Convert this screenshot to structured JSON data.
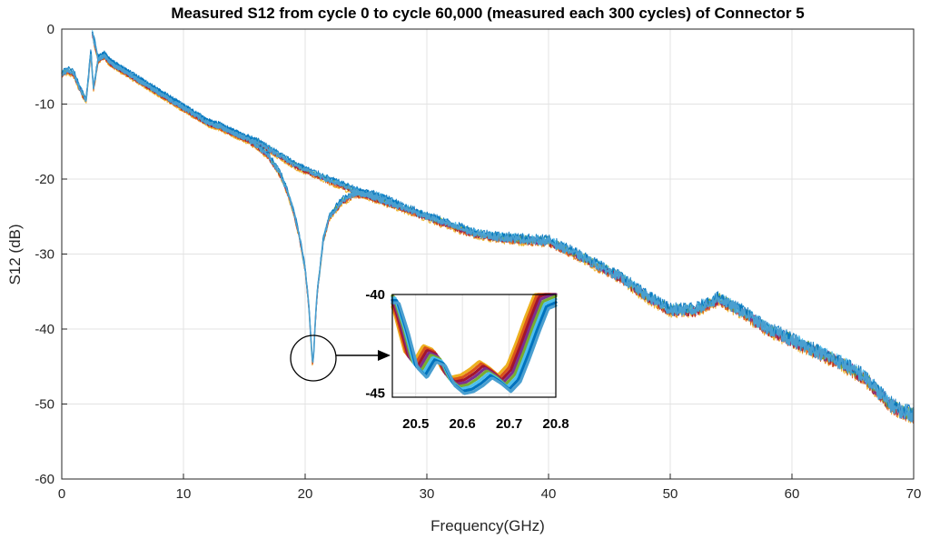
{
  "chart_data": {
    "type": "line",
    "title": "Measured S12 from cycle 0 to cycle 60,000 (measured each 300 cycles) of Connector 5",
    "xlabel": "Frequency(GHz)",
    "ylabel": "S12 (dB)",
    "xlim": [
      0,
      70
    ],
    "ylim": [
      -60,
      0
    ],
    "x_ticks": [
      "0",
      "10",
      "20",
      "30",
      "40",
      "50",
      "60",
      "70"
    ],
    "y_ticks": [
      "0",
      "-10",
      "-20",
      "-30",
      "-40",
      "-50",
      "-60"
    ],
    "grid": true,
    "legend": "none",
    "series_colors": [
      "#edb120",
      "#d95319",
      "#a2142f",
      "#7e2f8e",
      "#77ac30",
      "#4dbeee",
      "#0072bd"
    ],
    "main_color": "#4a9fd0",
    "series": [
      {
        "x": [
          0,
          0.5,
          1.0,
          1.5,
          2.0,
          2.4,
          2.6,
          3.0,
          3.5,
          4.0,
          5,
          6,
          7,
          8,
          9,
          10,
          11,
          12,
          13,
          14,
          15,
          16,
          17,
          18,
          19,
          20,
          22,
          24,
          26,
          28,
          30,
          32,
          34,
          36,
          38,
          40,
          42,
          44,
          46,
          48,
          50,
          52,
          54,
          56,
          58,
          60,
          62,
          64,
          66,
          68,
          69,
          70
        ],
        "y": [
          -6,
          -5.5,
          -6,
          -8,
          -9.5,
          -3,
          -8,
          -4,
          -3.5,
          -4.5,
          -5.5,
          -6.5,
          -7.5,
          -8.5,
          -9.5,
          -10.5,
          -11.5,
          -12.5,
          -13,
          -13.8,
          -14.5,
          -15,
          -16,
          -17,
          -18,
          -18.8,
          -20.2,
          -21.5,
          -22.7,
          -23.8,
          -25,
          -26.2,
          -27.3,
          -27.8,
          -28.1,
          -28.3,
          -29.8,
          -31.5,
          -33.2,
          -35.6,
          -37.5,
          -37.5,
          -36,
          -37.8,
          -40,
          -41.5,
          -43,
          -44.5,
          -46.5,
          -50,
          -51,
          -51.5
        ]
      },
      {
        "x": [
          2.5,
          3.0,
          3.5,
          4.0,
          5,
          6,
          7,
          8,
          9,
          10,
          11,
          12,
          13,
          14,
          15,
          16,
          17,
          18,
          18.5,
          19,
          19.5,
          20,
          20.3,
          20.5,
          20.6,
          20.7,
          20.8,
          21,
          21.5,
          22,
          23,
          24,
          25,
          26,
          28
        ],
        "y": [
          -0.5,
          -4,
          -3.5,
          -4.5,
          -5.5,
          -6.5,
          -7.5,
          -8.5,
          -9.5,
          -10.5,
          -11.5,
          -12.5,
          -13,
          -13.8,
          -14.5,
          -15.5,
          -17,
          -19.5,
          -21.5,
          -24,
          -27.5,
          -32,
          -37,
          -42,
          -44.5,
          -43.5,
          -40,
          -35,
          -28,
          -25,
          -23,
          -22,
          -22,
          -22.3,
          -23.8
        ]
      }
    ],
    "inset": {
      "xlim": [
        20.45,
        20.8
      ],
      "ylim": [
        -45.2,
        -40
      ],
      "x_ticks": [
        "20.5",
        "20.6",
        "20.7",
        "20.8"
      ],
      "y_ticks": [
        "-40",
        "-45"
      ],
      "x": [
        20.45,
        20.47,
        20.49,
        20.51,
        20.53,
        20.55,
        20.57,
        20.59,
        20.61,
        20.63,
        20.65,
        20.67,
        20.69,
        20.71,
        20.73,
        20.75,
        20.77,
        20.8
      ],
      "y": [
        -40,
        -41.5,
        -43.3,
        -43.8,
        -43,
        -43.2,
        -44.2,
        -44.6,
        -44.5,
        -44.2,
        -43.8,
        -44.1,
        -44.5,
        -44,
        -42.8,
        -41.5,
        -40.3,
        -40
      ]
    }
  }
}
